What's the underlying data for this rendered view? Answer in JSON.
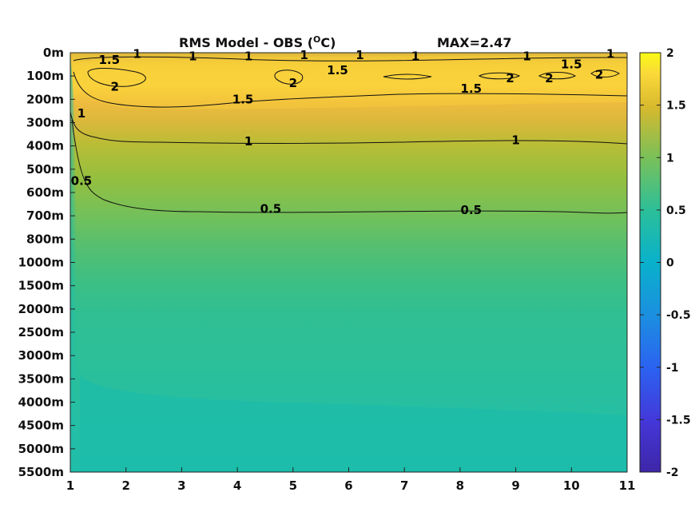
{
  "chart_data": {
    "type": "heatmap",
    "title": "RMS Model - OBS (",
    "title_superscript": "O",
    "title_unit_end": "C)",
    "max_label": "MAX=2.47",
    "x_ticks": [
      1,
      2,
      3,
      4,
      5,
      6,
      7,
      8,
      9,
      10,
      11
    ],
    "xlim": [
      1,
      11
    ],
    "y_tick_labels": [
      "0m",
      "100m",
      "200m",
      "300m",
      "400m",
      "500m",
      "600m",
      "700m",
      "800m",
      "1000m",
      "1500m",
      "2000m",
      "2500m",
      "3000m",
      "3500m",
      "4000m",
      "4500m",
      "5000m",
      "5500m"
    ],
    "colorbar": {
      "range": [
        -2,
        2
      ],
      "ticks": [
        2,
        1.5,
        1,
        0.5,
        0,
        -0.5,
        -1,
        -1.5,
        -2
      ],
      "tick_labels": [
        "2",
        "1.5",
        "1",
        "0.5",
        "0",
        "-0.5",
        "-1",
        "-1.5",
        "-2"
      ],
      "colormap": "parula"
    },
    "depth_profile": {
      "depth_levels": [
        "0m",
        "100m",
        "200m",
        "300m",
        "400m",
        "500m",
        "600m",
        "700m",
        "800m",
        "1000m",
        "1500m",
        "2000m",
        "2500m",
        "3000m",
        "3500m",
        "4000m",
        "4500m",
        "5000m",
        "5500m"
      ],
      "rms_values": [
        1.2,
        2.0,
        1.7,
        1.35,
        1.0,
        0.85,
        0.7,
        0.5,
        0.38,
        0.3,
        0.25,
        0.2,
        0.19,
        0.18,
        0.17,
        0.15,
        0.13,
        0.12,
        0.12
      ]
    },
    "contour_levels": [
      0.5,
      1,
      1.5,
      2
    ],
    "contour_labels": [
      {
        "text": "1.5",
        "x": 1.7,
        "depth_index": 0.3
      },
      {
        "text": "1",
        "x": 2.2,
        "depth_index": 0.05
      },
      {
        "text": "1",
        "x": 3.2,
        "depth_index": 0.15
      },
      {
        "text": "1",
        "x": 4.2,
        "depth_index": 0.15
      },
      {
        "text": "1",
        "x": 5.2,
        "depth_index": 0.1
      },
      {
        "text": "1",
        "x": 6.2,
        "depth_index": 0.1
      },
      {
        "text": "1",
        "x": 7.2,
        "depth_index": 0.15
      },
      {
        "text": "1",
        "x": 9.2,
        "depth_index": 0.15
      },
      {
        "text": "1",
        "x": 10.7,
        "depth_index": 0.05
      },
      {
        "text": "1.5",
        "x": 5.8,
        "depth_index": 0.75
      },
      {
        "text": "1.5",
        "x": 10.0,
        "depth_index": 0.5
      },
      {
        "text": "2",
        "x": 1.8,
        "depth_index": 1.45
      },
      {
        "text": "2",
        "x": 5.0,
        "depth_index": 1.3
      },
      {
        "text": "2",
        "x": 8.9,
        "depth_index": 1.1
      },
      {
        "text": "2",
        "x": 9.6,
        "depth_index": 1.1
      },
      {
        "text": "2",
        "x": 10.5,
        "depth_index": 0.95
      },
      {
        "text": "1.5",
        "x": 4.1,
        "depth_index": 2.0
      },
      {
        "text": "1.5",
        "x": 8.2,
        "depth_index": 1.55
      },
      {
        "text": "1",
        "x": 1.2,
        "depth_index": 2.6
      },
      {
        "text": "1",
        "x": 4.2,
        "depth_index": 3.8
      },
      {
        "text": "1",
        "x": 9.0,
        "depth_index": 3.75
      },
      {
        "text": "0.5",
        "x": 1.2,
        "depth_index": 5.5
      },
      {
        "text": "0.5",
        "x": 4.6,
        "depth_index": 6.7
      },
      {
        "text": "0.5",
        "x": 8.2,
        "depth_index": 6.75
      }
    ]
  }
}
